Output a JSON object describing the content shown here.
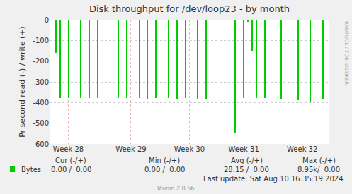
{
  "chart_data": {
    "type": "bar",
    "title": "Disk throughput for /dev/loop23 - by month",
    "y_label": "Pr second read (-) / write (+)",
    "categories": [
      null,
      null,
      null,
      null,
      "Week 28",
      null,
      null,
      null,
      null,
      null,
      null,
      null,
      null,
      null,
      null,
      null,
      null,
      null,
      null,
      "Week 29",
      null,
      null,
      null,
      null,
      null,
      null,
      null,
      null,
      null,
      null,
      null,
      null,
      null,
      "Week 30",
      null,
      null,
      null,
      null,
      null,
      null,
      null,
      null,
      null,
      null,
      null,
      null,
      "Week 31",
      null,
      null,
      null,
      null,
      null,
      null,
      null,
      null,
      null,
      null,
      null,
      null,
      null,
      "Week 32",
      null,
      null,
      null,
      null,
      null,
      null
    ],
    "series": [
      {
        "name": "Bytes",
        "color": "#00cc00",
        "values": [
          0,
          -160,
          -380,
          0,
          -380,
          0,
          0,
          -380,
          0,
          -380,
          0,
          -380,
          0,
          -380,
          0,
          0,
          -380,
          0,
          -380,
          0,
          0,
          -380,
          0,
          -385,
          0,
          -380,
          0,
          0,
          -380,
          0,
          -385,
          0,
          -380,
          0,
          0,
          -385,
          0,
          -385,
          0,
          0,
          0,
          0,
          0,
          0,
          -545,
          0,
          -380,
          -10,
          -150,
          -380,
          0,
          -380,
          0,
          0,
          0,
          -385,
          0,
          -5,
          0,
          -390,
          0,
          0,
          -395,
          0,
          0,
          -385,
          0
        ]
      }
    ],
    "ylim": [
      -600,
      0
    ],
    "yticks": [
      -600,
      -500,
      -400,
      -300,
      -200,
      -100,
      0
    ],
    "grid": true,
    "stats": {
      "columns": [
        "Cur (-/+)",
        "Min (-/+)",
        "Avg (-/+)",
        "Max (-/+)"
      ],
      "cells": [
        "0.00 /  0.00",
        "0.00 /  0.00",
        "28.15 /  0.00",
        "8.95k/  0.00"
      ]
    },
    "footer": "Last update: Sat Aug 10 16:35:19 2024",
    "credit": "Munin 2.0.56",
    "watermark": "RRDTOOL / TOBI OETIKER"
  }
}
